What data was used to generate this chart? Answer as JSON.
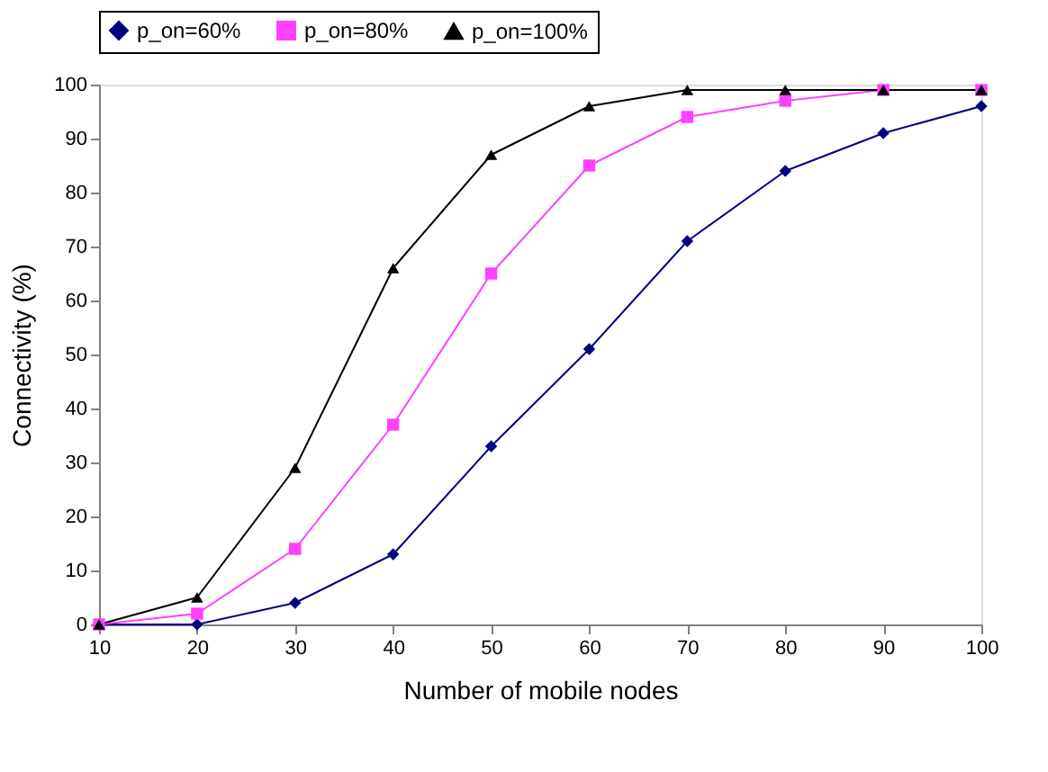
{
  "chart_data": {
    "type": "line",
    "xlabel": "Number of mobile nodes",
    "ylabel": "Connectivity (%)",
    "x": [
      10,
      20,
      30,
      40,
      50,
      60,
      70,
      80,
      90,
      100
    ],
    "xlim": [
      10,
      100
    ],
    "xticks": [
      10,
      20,
      30,
      40,
      50,
      60,
      70,
      80,
      90,
      100
    ],
    "ylim": [
      0,
      100
    ],
    "yticks": [
      0,
      10,
      20,
      30,
      40,
      50,
      60,
      70,
      80,
      90,
      100
    ],
    "grid": false,
    "legend": "top",
    "line_style": "solid",
    "series": [
      {
        "name": "p_on=60%",
        "color": "#000080",
        "marker": "diamond",
        "values": [
          0,
          0,
          4,
          13,
          33,
          51,
          71,
          84,
          91,
          96
        ]
      },
      {
        "name": "p_on=80%",
        "color": "#ff40ff",
        "marker": "square",
        "values": [
          0,
          2,
          14,
          37,
          65,
          85,
          94,
          97,
          99,
          99
        ]
      },
      {
        "name": "p_on=100%",
        "color": "#000000",
        "marker": "triangle",
        "values": [
          0,
          5,
          29,
          66,
          87,
          96,
          99,
          99,
          99,
          99
        ]
      }
    ]
  }
}
